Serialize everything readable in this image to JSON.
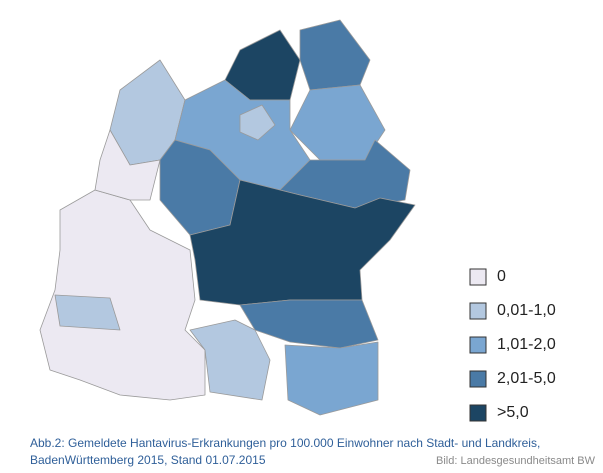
{
  "legend": [
    {
      "label": "0",
      "color": "#ece9f2"
    },
    {
      "label": "0,01-1,0",
      "color": "#b3c8e0"
    },
    {
      "label": "1,01-2,0",
      "color": "#7aa6d1"
    },
    {
      "label": "2,01-5,0",
      "color": "#4a7aa6"
    },
    {
      "label": ">5,0",
      "color": "#1c4563"
    }
  ],
  "caption": [
    "Abb.2: Gemeldete Hantavirus-Erkrankungen pro 100.000 Einwohner nach Stadt- und Landkreis,",
    "BadenWürttemberg 2015, Stand 01.07.2015"
  ],
  "credit": "Bild: Landesgesundheitsamt BW"
}
